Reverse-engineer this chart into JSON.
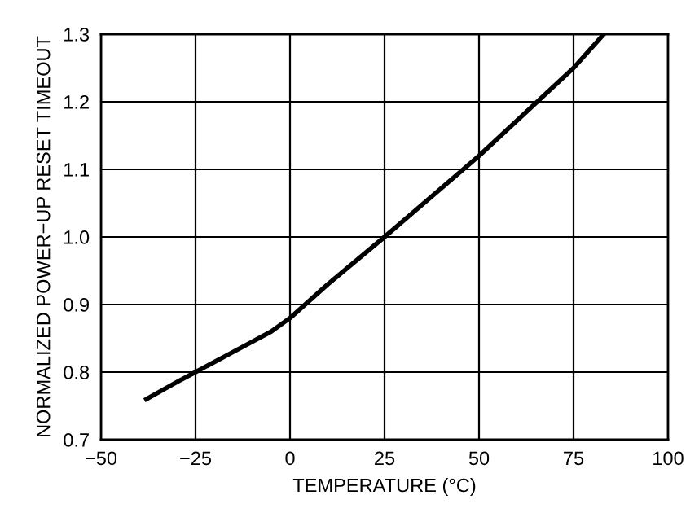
{
  "chart_data": {
    "type": "line",
    "xlabel": "TEMPERATURE (°C)",
    "ylabel": "NORMALIZED POWER−UP RESET TIMEOUT",
    "x": [
      -38,
      -30,
      -25,
      -15,
      -5,
      0,
      5,
      10,
      25,
      50,
      75,
      83
    ],
    "series": [
      {
        "color": "#000000",
        "values": [
          0.76,
          0.785,
          0.8,
          0.83,
          0.86,
          0.88,
          0.905,
          0.93,
          1.0,
          1.12,
          1.25,
          1.3
        ]
      }
    ],
    "xlim": [
      -50,
      100
    ],
    "ylim": [
      0.7,
      1.3
    ],
    "xticks": [
      {
        "value": -50,
        "label": "−50"
      },
      {
        "value": -25,
        "label": "−25"
      },
      0,
      25,
      50,
      75,
      100
    ],
    "yticks": [
      0.7,
      0.8,
      0.9,
      {
        "value": 1,
        "label": "1.0"
      },
      1.1,
      1.2,
      1.3
    ],
    "grid": true,
    "line_style": "solid",
    "marker": "none"
  }
}
